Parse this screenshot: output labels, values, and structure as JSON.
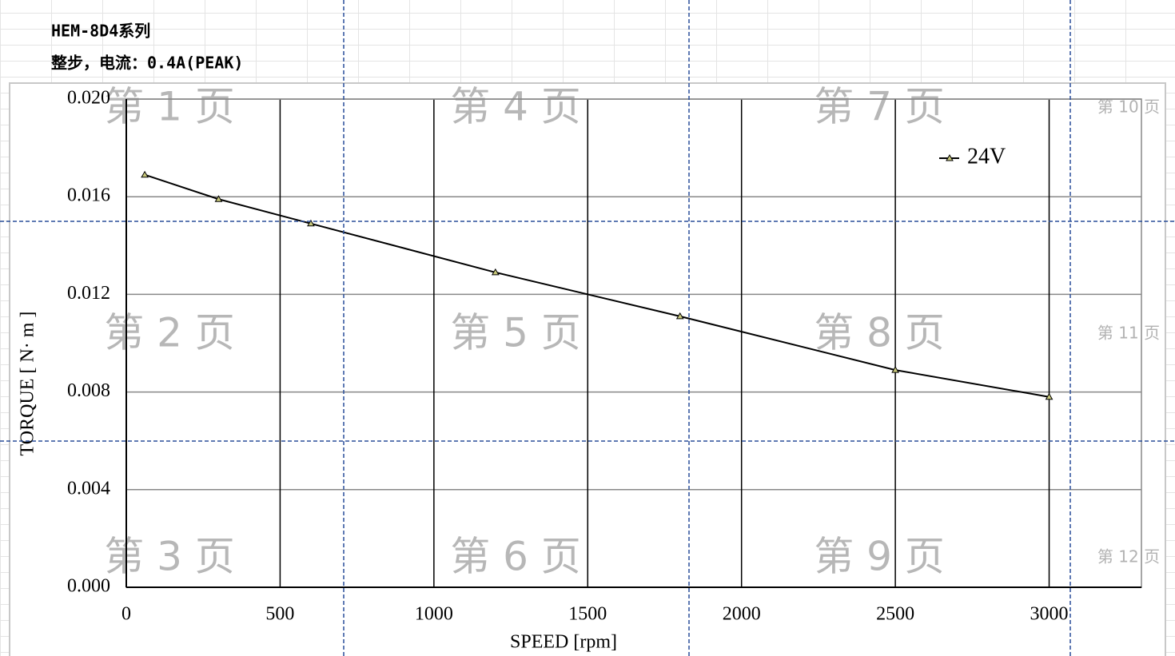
{
  "header": {
    "title": "HEM-8D4系列",
    "subtitle": "整步，电流：0.4A(PEAK)"
  },
  "page_labels": [
    "第 1 页",
    "第 2 页",
    "第 3 页",
    "第 4 页",
    "第 5 页",
    "第 6 页",
    "第 7 页",
    "第 8 页",
    "第 9 页",
    "第 10 页",
    "第 11 页",
    "第 12 页"
  ],
  "chart_data": {
    "type": "line",
    "x_label": "SPEED [rpm]",
    "y_label": "TORQUE [ N· m ]",
    "x": [
      60,
      300,
      600,
      1200,
      1800,
      2500,
      3000
    ],
    "series": [
      {
        "name": "24V",
        "color": "#000000",
        "values": [
          0.0169,
          0.0159,
          0.0149,
          0.0129,
          0.0111,
          0.0089,
          0.0078
        ]
      }
    ],
    "xlim": [
      0,
      3300
    ],
    "xticks": [
      0,
      500,
      1000,
      1500,
      2000,
      2500,
      3000
    ],
    "ylim": [
      0,
      0.02
    ],
    "yticks": [
      {
        "value": 0,
        "label": "0.000"
      },
      0.004,
      0.008,
      0.012,
      0.016,
      {
        "value": 0.02,
        "label": "0.020"
      }
    ],
    "grid": true,
    "legend": "upper right"
  }
}
